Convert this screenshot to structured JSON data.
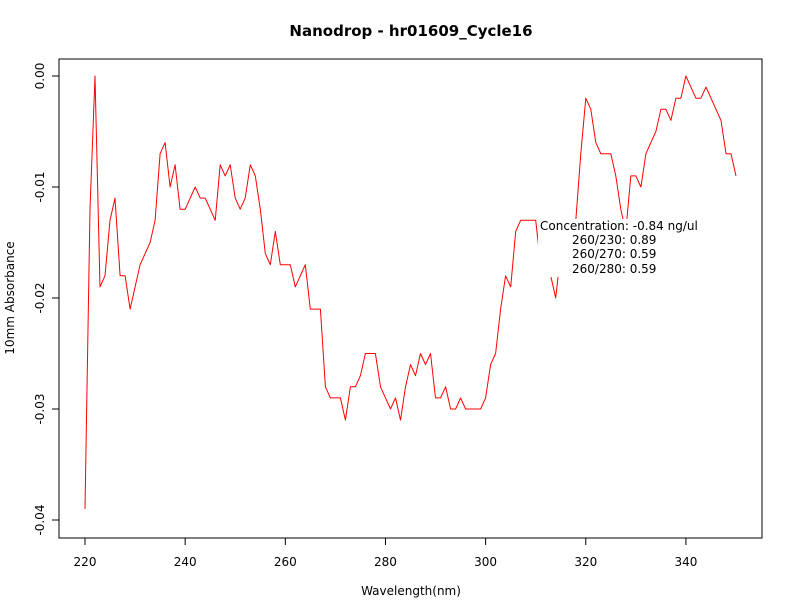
{
  "chart_data": {
    "type": "line",
    "title": "Nanodrop - hr01609_Cycle16",
    "xlabel": "Wavelength(nm)",
    "ylabel": "10mm Absorbance",
    "xlim": [
      220,
      350
    ],
    "ylim": [
      -0.04,
      0.0
    ],
    "x_ticks": [
      220,
      240,
      260,
      280,
      300,
      320,
      340
    ],
    "x_tick_labels": [
      "220",
      "240",
      "260",
      "280",
      "300",
      "320",
      "340"
    ],
    "y_ticks": [
      0.0,
      -0.01,
      -0.02,
      -0.03,
      -0.04
    ],
    "y_tick_labels": [
      "0.00",
      "-0.01",
      "-0.02",
      "-0.03",
      "-0.04"
    ],
    "grid": false,
    "series": [
      {
        "color": "#ff0000",
        "x": [
          220,
          221,
          222,
          223,
          224,
          225,
          226,
          227,
          228,
          229,
          230,
          231,
          232,
          233,
          234,
          235,
          236,
          237,
          238,
          239,
          240,
          241,
          242,
          243,
          244,
          245,
          246,
          247,
          248,
          249,
          250,
          251,
          252,
          253,
          254,
          255,
          256,
          257,
          258,
          259,
          260,
          261,
          262,
          263,
          264,
          265,
          266,
          267,
          268,
          269,
          270,
          271,
          272,
          273,
          274,
          275,
          276,
          277,
          278,
          279,
          280,
          281,
          282,
          283,
          284,
          285,
          286,
          287,
          288,
          289,
          290,
          291,
          292,
          293,
          294,
          295,
          296,
          297,
          298,
          299,
          300,
          301,
          302,
          303,
          304,
          305,
          306,
          307,
          308,
          309,
          310,
          311,
          312,
          313,
          314,
          315,
          316,
          317,
          318,
          319,
          320,
          321,
          322,
          323,
          324,
          325,
          326,
          327,
          328,
          329,
          330,
          331,
          332,
          333,
          334,
          335,
          336,
          337,
          338,
          339,
          340,
          341,
          342,
          343,
          344,
          345,
          346,
          347,
          348,
          349,
          350
        ],
        "y": [
          -0.039,
          -0.012,
          0.0,
          -0.019,
          -0.018,
          -0.013,
          -0.011,
          -0.018,
          -0.018,
          -0.021,
          -0.019,
          -0.017,
          -0.016,
          -0.015,
          -0.013,
          -0.007,
          -0.006,
          -0.01,
          -0.008,
          -0.012,
          -0.012,
          -0.011,
          -0.01,
          -0.011,
          -0.011,
          -0.012,
          -0.013,
          -0.008,
          -0.009,
          -0.008,
          -0.011,
          -0.012,
          -0.011,
          -0.008,
          -0.009,
          -0.012,
          -0.016,
          -0.017,
          -0.014,
          -0.017,
          -0.017,
          -0.017,
          -0.019,
          -0.018,
          -0.017,
          -0.021,
          -0.021,
          -0.021,
          -0.028,
          -0.029,
          -0.029,
          -0.029,
          -0.031,
          -0.028,
          -0.028,
          -0.027,
          -0.025,
          -0.025,
          -0.025,
          -0.028,
          -0.029,
          -0.03,
          -0.029,
          -0.031,
          -0.028,
          -0.026,
          -0.027,
          -0.025,
          -0.026,
          -0.025,
          -0.029,
          -0.029,
          -0.028,
          -0.03,
          -0.03,
          -0.029,
          -0.03,
          -0.03,
          -0.03,
          -0.03,
          -0.029,
          -0.026,
          -0.025,
          -0.021,
          -0.018,
          -0.019,
          -0.014,
          -0.013,
          -0.013,
          -0.013,
          -0.013,
          -0.017,
          -0.018,
          -0.018,
          -0.02,
          -0.016,
          -0.015,
          -0.017,
          -0.013,
          -0.007,
          -0.002,
          -0.003,
          -0.006,
          -0.007,
          -0.007,
          -0.007,
          -0.009,
          -0.012,
          -0.014,
          -0.009,
          -0.009,
          -0.01,
          -0.007,
          -0.006,
          -0.005,
          -0.003,
          -0.003,
          -0.004,
          -0.002,
          -0.002,
          0.0,
          -0.001,
          -0.002,
          -0.002,
          -0.001,
          -0.002,
          -0.003,
          -0.004,
          -0.007,
          -0.007,
          -0.009
        ]
      }
    ],
    "annotations": [
      "Concentration: -0.84 ng/ul",
      "260/230: 0.89",
      "260/270: 0.59",
      "260/280: 0.59"
    ]
  }
}
